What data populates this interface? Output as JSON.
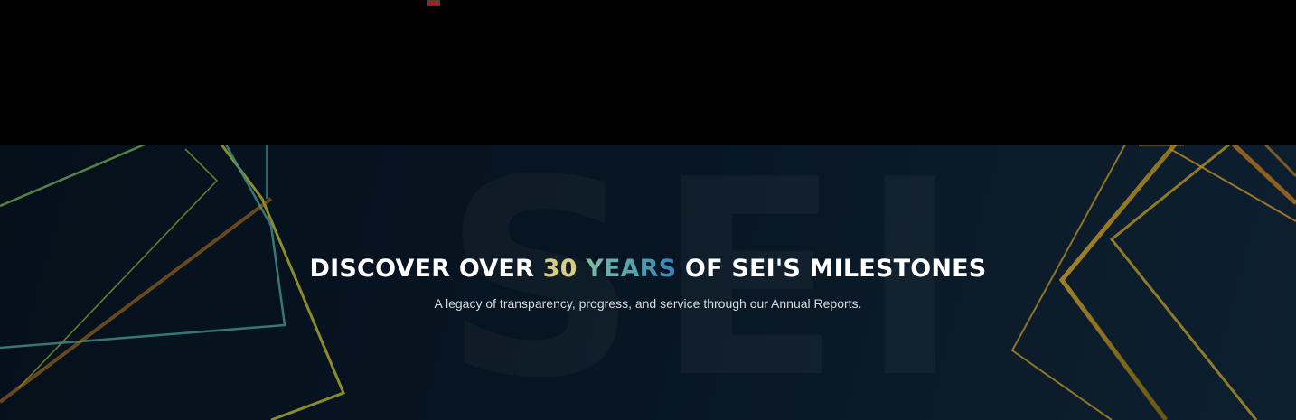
{
  "hero": {
    "watermark": "SEI",
    "headline": {
      "part1": "DISCOVER OVER ",
      "accent_number": "30",
      "accent_years": "YEARS",
      "part2": " OF SEI'S MILESTONES"
    },
    "subtitle": "A legacy of transparency, progress, and service through our Annual Reports."
  },
  "colors": {
    "background_top": "#000000",
    "hero_background": "#071522",
    "accent_gold": "#d7cc85",
    "accent_teal": "#5aa9ad",
    "marker_red": "#b0171f"
  }
}
